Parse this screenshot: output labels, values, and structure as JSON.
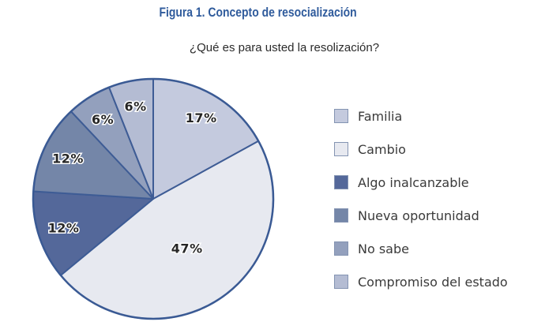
{
  "figure": {
    "title": "Figura 1. Concepto de resocialización",
    "title_color": "#2f5b9c",
    "subtitle": "¿Qué es para usted la resolización?",
    "subtitle_color": "#2b2b2b"
  },
  "chart_data": {
    "type": "pie",
    "title": "Figura 1. Concepto de resocialización",
    "subtitle": "¿Qué es para usted la resolización?",
    "categories": [
      "Familia",
      "Cambio",
      "Algo inalcanzable",
      "Nueva oportunidad",
      "No sabe",
      "Compromiso del estado"
    ],
    "values": [
      17,
      47,
      12,
      12,
      6,
      6
    ],
    "value_labels": [
      "17%",
      "47%",
      "12%",
      "12%",
      "6%",
      "6%"
    ],
    "colors": [
      "#c4cade",
      "#e7e9f0",
      "#54689a",
      "#7486a8",
      "#93a0bd",
      "#b4bcd3"
    ],
    "slice_border_color": "#3e5c95",
    "outer_ring_color": "#3a5a94",
    "label_text_color": "#262626",
    "label_outline_color": "#ffffff",
    "start_angle": "top",
    "direction": "clockwise",
    "legend": {
      "position": "right",
      "swatch_border_color": "#8494b2",
      "text_color": "#3a3a3a"
    }
  }
}
